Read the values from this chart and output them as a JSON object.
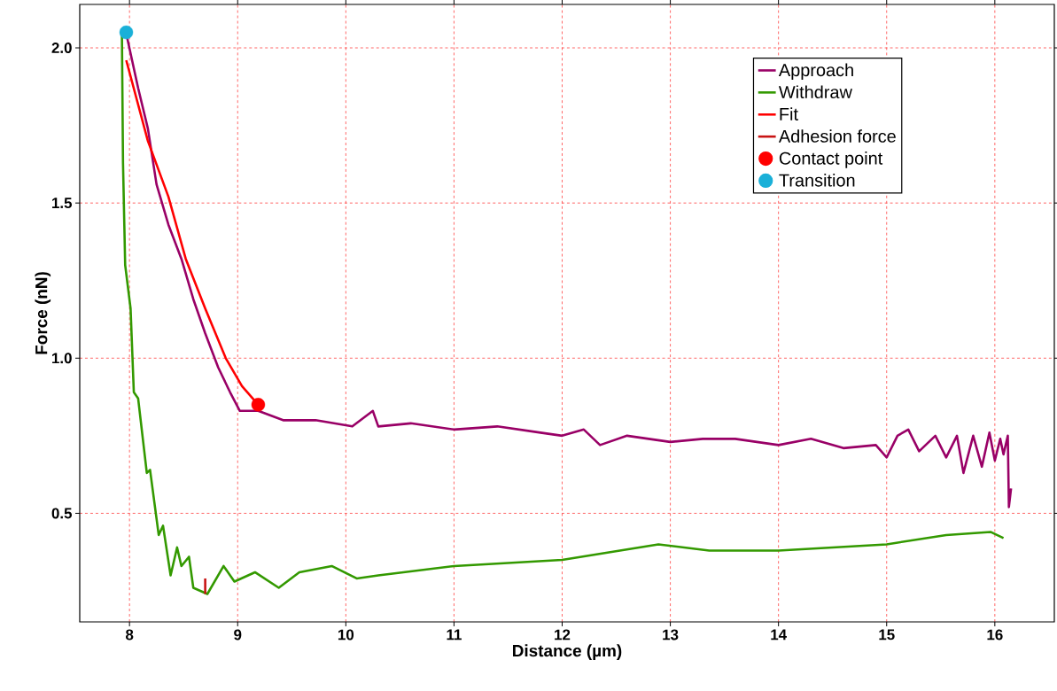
{
  "chart_data": {
    "type": "line",
    "xlabel": "Distance (µm)",
    "ylabel": "Force (nN)",
    "xlim": [
      7.54,
      16.55
    ],
    "ylim": [
      0.15,
      2.14
    ],
    "xticks": [
      8,
      9,
      10,
      11,
      12,
      13,
      14,
      15,
      16
    ],
    "yticks": [
      0.5,
      {
        "value": 1.0,
        "label": "1.0"
      },
      1.5,
      {
        "value": 2.0,
        "label": "2.0"
      }
    ],
    "grid": true,
    "legend": "top right",
    "series": [
      {
        "name": "Approach",
        "color": "#990066",
        "x": [
          7.97,
          7.98,
          8.08,
          8.17,
          8.25,
          8.36,
          8.48,
          8.59,
          8.7,
          8.82,
          8.93,
          9.02,
          9.19,
          9.42,
          9.72,
          10.06,
          10.25,
          10.3,
          10.6,
          11.0,
          11.4,
          11.8,
          12.0,
          12.2,
          12.35,
          12.6,
          13.0,
          13.3,
          13.6,
          14.0,
          14.3,
          14.6,
          14.9,
          15.0,
          15.1,
          15.2,
          15.3,
          15.45,
          15.55,
          15.65,
          15.71,
          15.8,
          15.88,
          15.95,
          16.0,
          16.05,
          16.08,
          16.12,
          16.13,
          16.15
        ],
        "values": [
          2.05,
          2.03,
          1.87,
          1.74,
          1.56,
          1.43,
          1.32,
          1.19,
          1.08,
          0.97,
          0.89,
          0.83,
          0.83,
          0.8,
          0.8,
          0.78,
          0.83,
          0.78,
          0.79,
          0.77,
          0.78,
          0.76,
          0.75,
          0.77,
          0.72,
          0.75,
          0.73,
          0.74,
          0.74,
          0.72,
          0.74,
          0.71,
          0.72,
          0.68,
          0.75,
          0.77,
          0.7,
          0.75,
          0.68,
          0.75,
          0.63,
          0.75,
          0.65,
          0.76,
          0.67,
          0.74,
          0.69,
          0.75,
          0.52,
          0.58
        ]
      },
      {
        "name": "Withdraw",
        "color": "#339900",
        "x": [
          7.93,
          7.94,
          7.96,
          8.01,
          8.04,
          8.08,
          8.16,
          8.19,
          8.27,
          8.31,
          8.38,
          8.44,
          8.48,
          8.55,
          8.59,
          8.72,
          8.87,
          8.97,
          9.16,
          9.38,
          9.57,
          9.87,
          10.1,
          10.3,
          11.0,
          12.0,
          12.89,
          13.36,
          14.0,
          15.0,
          15.55,
          15.96,
          16.08
        ],
        "values": [
          2.04,
          1.63,
          1.3,
          1.16,
          0.89,
          0.87,
          0.63,
          0.64,
          0.43,
          0.46,
          0.3,
          0.39,
          0.33,
          0.36,
          0.26,
          0.24,
          0.33,
          0.28,
          0.31,
          0.26,
          0.31,
          0.33,
          0.29,
          0.3,
          0.33,
          0.35,
          0.4,
          0.38,
          0.38,
          0.4,
          0.43,
          0.44,
          0.42
        ]
      },
      {
        "name": "Fit",
        "color": "#ff0000",
        "x": [
          7.97,
          8.17,
          8.36,
          8.52,
          8.7,
          8.89,
          9.04,
          9.19
        ],
        "values": [
          1.96,
          1.7,
          1.52,
          1.32,
          1.16,
          1.0,
          0.91,
          0.85
        ]
      },
      {
        "name": "Adhesion force",
        "color": "#c81414",
        "x": [
          8.7,
          8.7
        ],
        "values": [
          0.24,
          0.29
        ]
      },
      {
        "name": "Contact point",
        "type": "scatter",
        "color": "#ff0000",
        "x": [
          9.19
        ],
        "values": [
          0.85
        ]
      },
      {
        "name": "Transition",
        "type": "scatter",
        "color": "#1ab0d8",
        "x": [
          7.97
        ],
        "values": [
          2.05
        ]
      }
    ]
  }
}
